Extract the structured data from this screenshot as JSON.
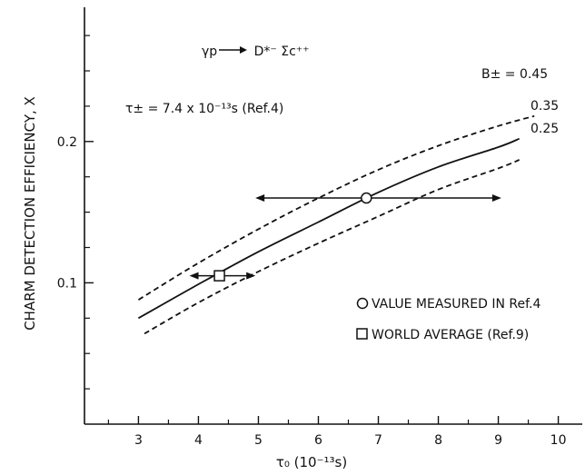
{
  "chart_data": {
    "type": "line",
    "xlabel": "τ₀ (10⁻¹³s)",
    "ylabel": "CHARM DETECTION EFFICIENCY, X",
    "xlim": [
      2.1,
      10.4
    ],
    "ylim": [
      0.0,
      0.295
    ],
    "x_ticks": [
      3,
      4,
      5,
      6,
      7,
      8,
      9,
      10
    ],
    "x_minor_ticks": [
      2.5,
      3.5,
      4.5,
      5.5,
      6.5,
      7.5,
      8.5,
      9.5
    ],
    "y_labeled_ticks": [
      0.1,
      0.2
    ],
    "y_minor_ticks": [
      0.025,
      0.05,
      0.075,
      0.125,
      0.15,
      0.175,
      0.225,
      0.25,
      0.275
    ],
    "grid": false,
    "series": [
      {
        "name": "0.45",
        "style": "dashed",
        "x": [
          3.0,
          4.0,
          5.0,
          6.0,
          7.0,
          8.0,
          9.0,
          9.6
        ],
        "y": [
          0.088,
          0.114,
          0.138,
          0.16,
          0.18,
          0.197,
          0.211,
          0.218
        ]
      },
      {
        "name": "0.35",
        "style": "solid",
        "x": [
          3.0,
          4.0,
          5.0,
          6.0,
          7.0,
          8.0,
          9.0,
          9.35
        ],
        "y": [
          0.075,
          0.099,
          0.122,
          0.143,
          0.164,
          0.182,
          0.196,
          0.202
        ]
      },
      {
        "name": "0.25",
        "style": "dashed",
        "x": [
          3.1,
          4.0,
          5.0,
          6.0,
          7.0,
          8.0,
          9.0,
          9.35
        ],
        "y": [
          0.064,
          0.086,
          0.108,
          0.128,
          0.147,
          0.166,
          0.181,
          0.187
        ]
      }
    ],
    "markers": [
      {
        "shape": "circle",
        "x": 6.8,
        "y": 0.16,
        "xerr": [
          4.95,
          9.05
        ]
      },
      {
        "shape": "square",
        "x": 4.35,
        "y": 0.105,
        "xerr": [
          3.85,
          4.95
        ]
      }
    ],
    "annotations": {
      "reaction_main": "γp",
      "reaction_products": "D*⁻ Σc⁺⁺",
      "tau_charged": "τ± = 7.4 x 10⁻¹³s (Ref.4)",
      "b_label": "B± = 0.45",
      "curve_label_mid": "0.35",
      "curve_label_low": "0.25",
      "legend_circle": "VALUE MEASURED IN Ref.4",
      "legend_square": "WORLD AVERAGE (Ref.9)"
    }
  }
}
